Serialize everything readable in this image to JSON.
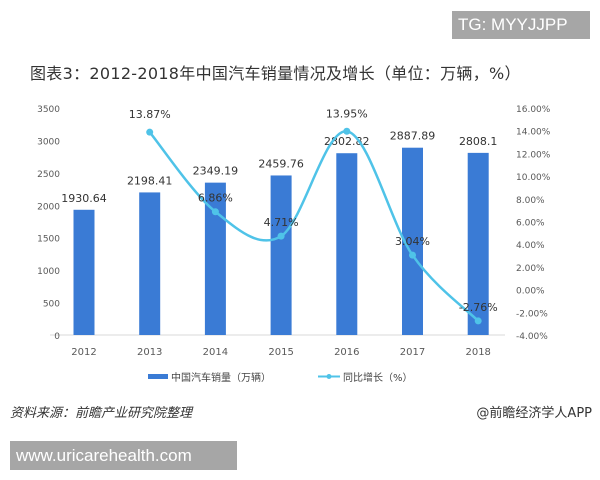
{
  "badge": "TG: MYYJJPP",
  "site": "www.uricarehealth.com",
  "source": "资料来源：前瞻产业研究院整理",
  "credit": "@前瞻经济学人APP",
  "colors": {
    "bar": "#3a7bd5",
    "line": "#4fc3e8"
  },
  "chart_data": {
    "type": "bar+line",
    "title": "图表3：2012-2018年中国汽车销量情况及增长（单位：万辆，%）",
    "categories": [
      "2012",
      "2013",
      "2014",
      "2015",
      "2016",
      "2017",
      "2018"
    ],
    "series": [
      {
        "name": "中国汽车销量（万辆）",
        "type": "bar",
        "axis": "left",
        "values": [
          1930.64,
          2198.41,
          2349.19,
          2459.76,
          2802.82,
          2887.89,
          2808.1
        ],
        "labels": [
          "1930.64",
          "2198.41",
          "2349.19",
          "2459.76",
          "2802.82",
          "2887.89",
          "2808.1"
        ]
      },
      {
        "name": "同比增长（%）",
        "type": "line",
        "axis": "right",
        "values": [
          null,
          13.87,
          6.86,
          4.71,
          13.95,
          3.04,
          -2.76
        ],
        "labels": [
          "",
          "13.87%",
          "6.86%",
          "4.71%",
          "13.95%",
          "3.04%",
          "-2.76%"
        ]
      }
    ],
    "left_axis": {
      "ylim": [
        0,
        3500
      ],
      "ticks": [
        "0",
        "500",
        "1000",
        "1500",
        "2000",
        "2500",
        "3000",
        "3500"
      ]
    },
    "right_axis": {
      "ylim": [
        -4,
        16
      ],
      "ticks": [
        "-4.00%",
        "-2.00%",
        "0.00%",
        "2.00%",
        "4.00%",
        "6.00%",
        "8.00%",
        "10.00%",
        "12.00%",
        "14.00%",
        "16.00%"
      ]
    },
    "legend": "bottom",
    "grid": false
  }
}
